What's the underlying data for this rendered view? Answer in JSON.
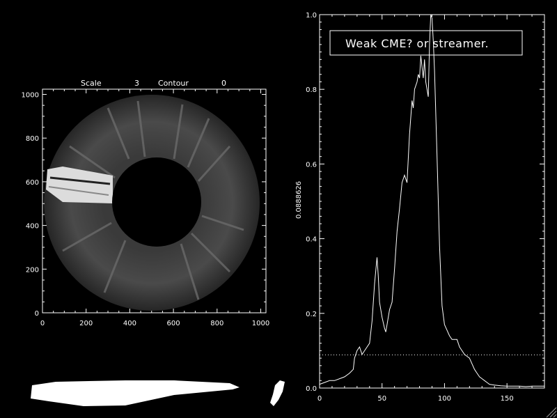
{
  "colors": {
    "background": "#000000",
    "foreground": "#ffffff"
  },
  "image_panel": {
    "header": {
      "scale_label": "Scale",
      "scale_value": "3",
      "contour_label": "Contour",
      "contour_value": "0"
    },
    "xlim": [
      0,
      1024
    ],
    "ylim": [
      0,
      1024
    ],
    "xticks": [
      "0",
      "200",
      "400",
      "600",
      "800",
      "1000"
    ],
    "yticks": [
      "0",
      "200",
      "400",
      "600",
      "800",
      "1000"
    ]
  },
  "chart_data": {
    "type": "line",
    "title": "",
    "xlabel": "",
    "ylabel": "0.0888626",
    "annotation": "Weak CME? or streamer.",
    "xlim": [
      0,
      180
    ],
    "ylim": [
      0,
      1.0
    ],
    "xticks": [
      "0",
      "50",
      "100",
      "150"
    ],
    "yticks": [
      "0.0",
      "0.2",
      "0.4",
      "0.6",
      "0.8",
      "1.0"
    ],
    "threshold": {
      "style": "dotted",
      "value": 0.0888626
    },
    "series": [
      {
        "x": [
          0,
          4,
          8,
          12,
          16,
          20,
          24,
          27,
          28,
          30,
          32,
          34,
          36,
          38,
          40,
          42,
          44,
          46,
          47,
          48,
          50,
          52,
          53,
          54,
          56,
          57,
          58,
          60,
          62,
          64,
          66,
          68,
          70,
          72,
          74,
          75,
          76,
          78,
          79,
          80,
          81,
          82,
          83,
          84,
          85,
          86,
          87,
          88,
          89,
          90,
          91,
          92,
          94,
          96,
          98,
          100,
          102,
          104,
          106,
          108,
          110,
          112,
          114,
          116,
          118,
          120,
          122,
          124,
          126,
          128,
          130,
          132,
          134,
          136,
          140,
          145,
          150,
          155,
          160,
          165,
          170,
          175,
          180
        ],
        "y": [
          0.01,
          0.015,
          0.02,
          0.02,
          0.025,
          0.03,
          0.04,
          0.05,
          0.08,
          0.1,
          0.11,
          0.09,
          0.1,
          0.11,
          0.12,
          0.18,
          0.28,
          0.35,
          0.3,
          0.23,
          0.19,
          0.16,
          0.15,
          0.17,
          0.21,
          0.22,
          0.23,
          0.32,
          0.42,
          0.48,
          0.55,
          0.57,
          0.55,
          0.68,
          0.77,
          0.75,
          0.8,
          0.82,
          0.84,
          0.83,
          0.89,
          0.86,
          0.83,
          0.88,
          0.82,
          0.8,
          0.78,
          0.92,
          1.0,
          0.99,
          0.93,
          0.85,
          0.62,
          0.38,
          0.22,
          0.17,
          0.155,
          0.14,
          0.13,
          0.13,
          0.13,
          0.11,
          0.1,
          0.09,
          0.085,
          0.08,
          0.065,
          0.05,
          0.04,
          0.03,
          0.025,
          0.02,
          0.015,
          0.01,
          0.008,
          0.006,
          0.005,
          0.005,
          0.005,
          0.004,
          0.005,
          0.005,
          0.005
        ]
      }
    ]
  }
}
